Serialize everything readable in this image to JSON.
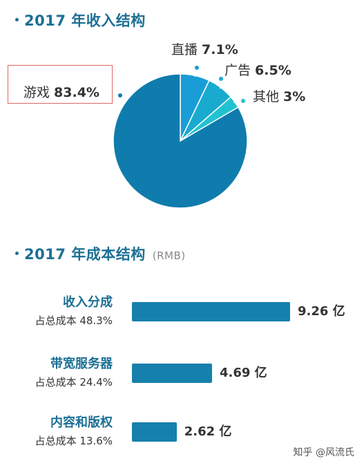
{
  "revenue": {
    "title": "2017 年收入结构",
    "chart_data": {
      "type": "pie",
      "title": "2017 年收入结构",
      "slices": [
        {
          "label": "游戏",
          "value": 83.4,
          "value_text": "83.4%",
          "color": "#0f7cad"
        },
        {
          "label": "直播",
          "value": 7.1,
          "value_text": "7.1%",
          "color": "#1a9dd6"
        },
        {
          "label": "广告",
          "value": 6.5,
          "value_text": "6.5%",
          "color": "#19aad0"
        },
        {
          "label": "其他",
          "value": 3.0,
          "value_text": "3%",
          "color": "#21c2d2"
        }
      ]
    }
  },
  "cost": {
    "title": "2017 年成本结构",
    "unit": "(RMB)",
    "chart_data": {
      "type": "bar",
      "title": "2017 年成本结构",
      "unit": "RMB",
      "categories": [
        "收入分成",
        "带宽服务器",
        "内容和版权"
      ],
      "values": [
        9.26,
        4.69,
        2.62
      ],
      "value_labels": [
        "9.26 亿",
        "4.69 亿",
        "2.62 亿"
      ],
      "share_labels": [
        "占总成本 48.3%",
        "占总成本 24.4%",
        "占总成本 13.6%"
      ],
      "color": "#1680ad"
    }
  },
  "watermark": "知乎 @风流氏"
}
